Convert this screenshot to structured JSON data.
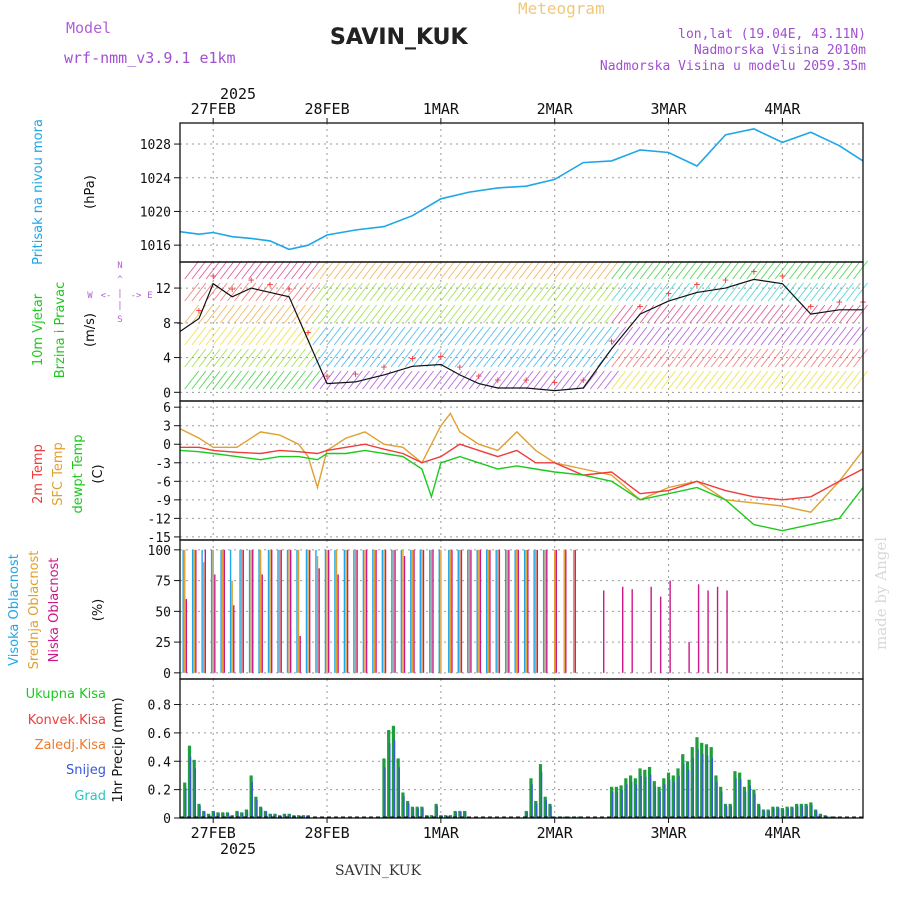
{
  "header": {
    "model_label": "Model",
    "model_name": "wrf-nmm_v3.9.1 e1km",
    "station": "SAVIN_KUK",
    "app_title": "Meteogram",
    "location": "lon,lat (19.04E, 43.11N)",
    "altitude": "Nadmorska Visina 2010m",
    "model_altitude": "Nadmorska Visina u modelu 2059.35m",
    "watermark": "made by Angel",
    "footer_station": "SAVIN_KUK"
  },
  "time_axis": {
    "year": "2025",
    "labels": [
      "27FEB",
      "28FEB",
      "1MAR",
      "2MAR",
      "3MAR",
      "4MAR"
    ],
    "start_hour": -7,
    "end_hour": 137
  },
  "colors": {
    "pressure": "#1ea6e8",
    "temp_2m": "#ef3c3c",
    "temp_sfc": "#e0a030",
    "dewpoint": "#1ec81e",
    "cloud_high": "#1ea6e8",
    "cloud_mid": "#e0a030",
    "cloud_low": "#cc1888",
    "precip_total": "#1e9e3c",
    "precip_snow": "#3a58d8",
    "precip_conv": "#d84a3a"
  },
  "chart_data": [
    {
      "type": "line",
      "ylabel": "(hPa)",
      "series_labels": [
        "Pritisak na nivou mora"
      ],
      "yticks": [
        1016,
        1020,
        1024,
        1028
      ],
      "ylim": [
        1014,
        1030.5
      ],
      "series": [
        {
          "name": "Pritisak na nivou mora",
          "x": [
            -7,
            -3,
            0,
            4,
            8,
            12,
            16,
            20,
            24,
            30,
            36,
            42,
            48,
            54,
            60,
            66,
            72,
            78,
            84,
            90,
            96,
            102,
            108,
            114,
            120,
            126,
            132,
            137
          ],
          "values": [
            1017.6,
            1017.3,
            1017.5,
            1017.0,
            1016.8,
            1016.5,
            1015.5,
            1016.0,
            1017.2,
            1017.8,
            1018.2,
            1019.5,
            1021.5,
            1022.3,
            1022.8,
            1023.0,
            1023.8,
            1025.8,
            1026.0,
            1027.3,
            1027.0,
            1025.4,
            1029.1,
            1029.8,
            1028.2,
            1029.4,
            1027.8,
            1026.0
          ]
        }
      ]
    },
    {
      "type": "line",
      "ylabel": "(m/s)",
      "series_labels": [
        "10m Vjetar",
        "Brzina i Pravac"
      ],
      "yticks": [
        0,
        4,
        8,
        12
      ],
      "ylim": [
        -1,
        15
      ],
      "series": [
        {
          "name": "Brzina",
          "x": [
            -7,
            -3,
            0,
            4,
            8,
            12,
            16,
            20,
            24,
            30,
            36,
            42,
            48,
            52,
            56,
            60,
            66,
            72,
            78,
            84,
            90,
            96,
            102,
            108,
            114,
            120,
            126,
            132,
            137
          ],
          "values": [
            7.0,
            8.5,
            12.5,
            11.0,
            12.0,
            11.5,
            11.0,
            6.0,
            1.0,
            1.2,
            2.0,
            3.0,
            3.2,
            2.0,
            1.0,
            0.5,
            0.5,
            0.2,
            0.5,
            5.0,
            9.0,
            10.5,
            11.5,
            12.0,
            13.0,
            12.5,
            9.0,
            9.5,
            9.5
          ]
        }
      ]
    },
    {
      "type": "line",
      "ylabel": "(C)",
      "series_labels": [
        "2m Temp",
        "SFC Temp",
        "dewpt Temp"
      ],
      "yticks": [
        6,
        3,
        0,
        -3,
        -6,
        -9,
        -12,
        -15
      ],
      "ylim": [
        -15.5,
        7
      ],
      "series": [
        {
          "name": "2m Temp",
          "x": [
            -7,
            -3,
            0,
            5,
            10,
            14,
            18,
            22,
            24,
            28,
            32,
            36,
            40,
            44,
            48,
            52,
            56,
            60,
            64,
            68,
            72,
            78,
            84,
            90,
            96,
            102,
            108,
            114,
            120,
            126,
            132,
            137
          ],
          "values": [
            -0.5,
            -0.5,
            -1.0,
            -1.3,
            -1.5,
            -1.0,
            -1.2,
            -1.5,
            -1.0,
            -0.5,
            0.0,
            -0.8,
            -1.5,
            -3.0,
            -2.0,
            0.0,
            -1.0,
            -2.0,
            -1.0,
            -3.0,
            -3.0,
            -5.0,
            -4.5,
            -8.0,
            -7.5,
            -6.0,
            -7.5,
            -8.5,
            -9.0,
            -8.5,
            -6.0,
            -4.0
          ]
        },
        {
          "name": "SFC Temp",
          "x": [
            -7,
            -3,
            0,
            5,
            10,
            14,
            18,
            20,
            22,
            24,
            28,
            32,
            36,
            40,
            44,
            48,
            50,
            52,
            56,
            60,
            64,
            68,
            72,
            78,
            84,
            90,
            96,
            102,
            108,
            114,
            120,
            126,
            132,
            137
          ],
          "values": [
            2.5,
            1.0,
            -0.5,
            -0.5,
            2.0,
            1.5,
            0.0,
            -2.0,
            -7.0,
            -1.0,
            1.0,
            2.0,
            0.0,
            -0.5,
            -3.0,
            3.0,
            5.0,
            2.0,
            0.0,
            -1.0,
            2.0,
            -1.0,
            -3.0,
            -4.0,
            -5.0,
            -9.0,
            -7.0,
            -6.0,
            -9.0,
            -9.5,
            -10.0,
            -11.0,
            -6.0,
            -1.0
          ]
        },
        {
          "name": "dewpt Temp",
          "x": [
            -7,
            -3,
            0,
            5,
            10,
            14,
            18,
            22,
            24,
            28,
            32,
            36,
            40,
            44,
            46,
            48,
            52,
            56,
            60,
            64,
            68,
            72,
            78,
            84,
            90,
            96,
            102,
            108,
            114,
            120,
            126,
            132,
            137
          ],
          "values": [
            -1.0,
            -1.2,
            -1.5,
            -2.0,
            -2.5,
            -2.0,
            -2.0,
            -2.5,
            -1.5,
            -1.5,
            -1.0,
            -1.5,
            -2.0,
            -4.0,
            -8.5,
            -3.0,
            -2.0,
            -3.0,
            -4.0,
            -3.5,
            -4.0,
            -4.5,
            -5.0,
            -6.0,
            -9.0,
            -8.0,
            -7.0,
            -9.0,
            -13.0,
            -14.0,
            -13.0,
            -12.0,
            -7.0
          ]
        }
      ]
    },
    {
      "type": "bar",
      "ylabel": "(%)",
      "series_labels": [
        "Visoka Oblacnost",
        "Srednja Oblacnost",
        "Niska Oblacnost"
      ],
      "yticks": [
        0,
        25,
        50,
        75,
        100
      ],
      "ylim": [
        -5,
        108
      ],
      "series": [
        {
          "name": "Visoka Oblacnost",
          "x": [
            -6,
            -4,
            -2,
            0,
            2,
            4,
            6,
            8,
            10,
            12,
            14,
            16,
            18,
            20,
            22,
            24,
            26,
            28,
            30,
            32,
            34,
            36,
            38,
            40,
            42,
            44,
            46,
            48,
            50,
            52,
            54,
            56,
            58,
            60,
            62,
            64,
            66,
            68,
            70
          ],
          "values": [
            100,
            100,
            100,
            100,
            100,
            100,
            100,
            100,
            100,
            100,
            100,
            100,
            100,
            100,
            100,
            100,
            100,
            100,
            100,
            100,
            100,
            100,
            100,
            100,
            100,
            100,
            100,
            100,
            100,
            100,
            100,
            100,
            100,
            100,
            100,
            100,
            100,
            100,
            100
          ]
        },
        {
          "name": "Srednja Oblacnost",
          "x": [
            -6,
            -4,
            -2,
            0,
            2,
            4,
            6,
            8,
            10,
            12,
            14,
            16,
            18,
            20,
            22,
            24,
            26,
            28,
            30,
            32,
            34,
            36,
            38,
            40,
            42,
            44,
            46,
            48,
            50,
            52,
            54,
            56,
            58,
            60,
            62,
            64,
            66,
            68,
            70,
            72,
            74,
            76
          ],
          "values": [
            100,
            100,
            90,
            100,
            100,
            75,
            100,
            100,
            100,
            100,
            100,
            100,
            100,
            100,
            95,
            100,
            100,
            100,
            100,
            100,
            100,
            100,
            100,
            100,
            100,
            100,
            100,
            100,
            100,
            100,
            100,
            100,
            100,
            100,
            100,
            100,
            100,
            100,
            100,
            100,
            100,
            100
          ]
        },
        {
          "name": "Niska Oblacnost",
          "x": [
            -6,
            -4,
            -2,
            0,
            2,
            4,
            6,
            8,
            10,
            12,
            14,
            16,
            18,
            20,
            22,
            24,
            26,
            28,
            30,
            32,
            34,
            36,
            38,
            40,
            42,
            44,
            46,
            48,
            50,
            52,
            54,
            56,
            58,
            60,
            62,
            64,
            66,
            68,
            70,
            72,
            74,
            76,
            82,
            86,
            88,
            92,
            94,
            96,
            100,
            102,
            104,
            106,
            108
          ],
          "values": [
            60,
            100,
            100,
            80,
            100,
            55,
            100,
            100,
            80,
            100,
            100,
            100,
            30,
            100,
            85,
            100,
            80,
            100,
            100,
            100,
            100,
            100,
            100,
            95,
            100,
            100,
            100,
            0,
            100,
            100,
            100,
            100,
            100,
            100,
            100,
            100,
            100,
            100,
            100,
            100,
            100,
            100,
            67,
            70,
            68,
            70,
            62,
            75,
            25,
            72,
            67,
            70,
            67
          ]
        }
      ]
    },
    {
      "type": "bar",
      "ylabel": "1hr Precip (mm)",
      "series_labels": [
        "Ukupna Kisa",
        "Konvek.Kisa",
        "Zaledj.Kisa",
        "Snijeg",
        "Grad"
      ],
      "yticks": [
        0,
        0.2,
        0.4,
        0.6,
        0.8
      ],
      "ylim": [
        0,
        0.98
      ],
      "series": [
        {
          "name": "Ukupna Kisa",
          "x": [
            -6,
            -5,
            -4,
            -3,
            -2,
            -1,
            0,
            1,
            2,
            3,
            4,
            5,
            6,
            7,
            8,
            9,
            10,
            11,
            12,
            13,
            14,
            15,
            16,
            17,
            18,
            19,
            20,
            36,
            37,
            38,
            39,
            40,
            41,
            42,
            43,
            44,
            45,
            46,
            47,
            48,
            49,
            50,
            51,
            52,
            53,
            66,
            67,
            68,
            69,
            70,
            71,
            72,
            73,
            74,
            75,
            76,
            77,
            84,
            85,
            86,
            87,
            88,
            89,
            90,
            91,
            92,
            93,
            94,
            95,
            96,
            97,
            98,
            99,
            100,
            101,
            102,
            103,
            104,
            105,
            106,
            107,
            108,
            109,
            110,
            111,
            112,
            113,
            114,
            115,
            116,
            117,
            118,
            119,
            120,
            121,
            122,
            123,
            124,
            125,
            126,
            127,
            128,
            129,
            130,
            131,
            132
          ],
          "values": [
            0.25,
            0.51,
            0.41,
            0.1,
            0.05,
            0.03,
            0.05,
            0.04,
            0.04,
            0.04,
            0.02,
            0.05,
            0.04,
            0.06,
            0.3,
            0.15,
            0.08,
            0.05,
            0.03,
            0.03,
            0.02,
            0.03,
            0.03,
            0.02,
            0.02,
            0.02,
            0.02,
            0.42,
            0.62,
            0.65,
            0.42,
            0.18,
            0.12,
            0.08,
            0.08,
            0.08,
            0.02,
            0.02,
            0.1,
            0.02,
            0.02,
            0.02,
            0.05,
            0.05,
            0.05,
            0.05,
            0.28,
            0.12,
            0.38,
            0.15,
            0.1,
            0.01,
            0.01,
            0.01,
            0.01,
            0.01,
            0.01,
            0.22,
            0.22,
            0.23,
            0.28,
            0.3,
            0.28,
            0.35,
            0.34,
            0.36,
            0.26,
            0.22,
            0.28,
            0.32,
            0.3,
            0.35,
            0.45,
            0.4,
            0.5,
            0.57,
            0.53,
            0.52,
            0.5,
            0.3,
            0.22,
            0.1,
            0.1,
            0.33,
            0.32,
            0.22,
            0.27,
            0.2,
            0.1,
            0.06,
            0.06,
            0.08,
            0.08,
            0.07,
            0.08,
            0.08,
            0.1,
            0.1,
            0.1,
            0.11,
            0.06,
            0.03,
            0.02,
            0.01,
            0.01,
            0.01
          ]
        }
      ]
    }
  ]
}
